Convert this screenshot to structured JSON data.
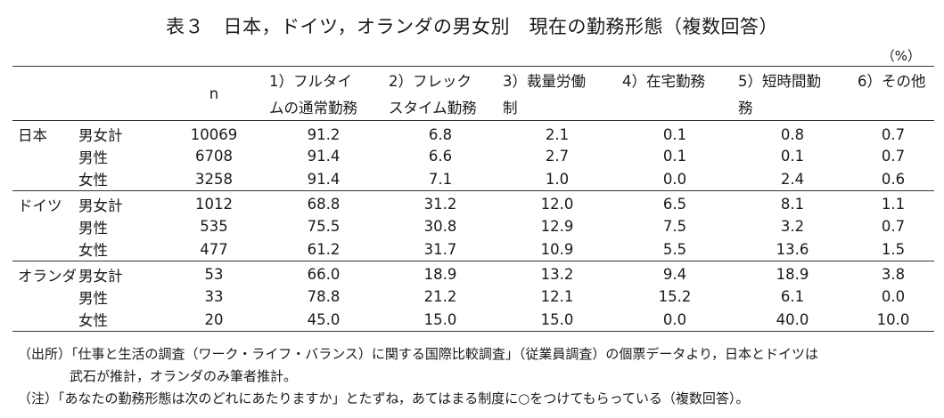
{
  "title": "表３　日本，ドイツ，オランダの男女別　現在の勤務形態（複数回答）",
  "unit": "（%）",
  "headers": {
    "n": "n",
    "col1_line1": "1）フルタイ",
    "col1_line2": "ムの通常勤務",
    "col2_line1": "2）フレック",
    "col2_line2": "スタイム勤務",
    "col3_line1": "3）裁量労働",
    "col3_line2": "制",
    "col4_line1": "4）在宅勤務",
    "col4_line2": "",
    "col5_line1": "5）短時間勤",
    "col5_line2": "務",
    "col6_line1": "6）その他",
    "col6_line2": ""
  },
  "groups": [
    {
      "country": "日本",
      "rows": [
        {
          "sex": "男女計",
          "n": "10069",
          "v1": "91.2",
          "v2": "6.8",
          "v3": "2.1",
          "v4": "0.1",
          "v5": "0.8",
          "v6": "0.7"
        },
        {
          "sex": "男性",
          "n": "6708",
          "v1": "91.4",
          "v2": "6.6",
          "v3": "2.7",
          "v4": "0.1",
          "v5": "0.1",
          "v6": "0.7"
        },
        {
          "sex": "女性",
          "n": "3258",
          "v1": "91.4",
          "v2": "7.1",
          "v3": "1.0",
          "v4": "0.0",
          "v5": "2.4",
          "v6": "0.6"
        }
      ]
    },
    {
      "country": "ドイツ",
      "rows": [
        {
          "sex": "男女計",
          "n": "1012",
          "v1": "68.8",
          "v2": "31.2",
          "v3": "12.0",
          "v4": "6.5",
          "v5": "8.1",
          "v6": "1.1"
        },
        {
          "sex": "男性",
          "n": "535",
          "v1": "75.5",
          "v2": "30.8",
          "v3": "12.9",
          "v4": "7.5",
          "v5": "3.2",
          "v6": "0.7"
        },
        {
          "sex": "女性",
          "n": "477",
          "v1": "61.2",
          "v2": "31.7",
          "v3": "10.9",
          "v4": "5.5",
          "v5": "13.6",
          "v6": "1.5"
        }
      ]
    },
    {
      "country": "オランダ",
      "rows": [
        {
          "sex": "男女計",
          "n": "53",
          "v1": "66.0",
          "v2": "18.9",
          "v3": "13.2",
          "v4": "9.4",
          "v5": "18.9",
          "v6": "3.8"
        },
        {
          "sex": "男性",
          "n": "33",
          "v1": "78.8",
          "v2": "21.2",
          "v3": "12.1",
          "v4": "15.2",
          "v5": "6.1",
          "v6": "0.0"
        },
        {
          "sex": "女性",
          "n": "20",
          "v1": "45.0",
          "v2": "15.0",
          "v3": "15.0",
          "v4": "0.0",
          "v5": "40.0",
          "v6": "10.0"
        }
      ]
    }
  ],
  "notes": {
    "source_line1": "（出所）「仕事と生活の調査（ワーク・ライフ・バランス）に関する国際比較調査」（従業員調査）の個票データより，日本とドイツは",
    "source_line2": "武石が推計，オランダのみ筆者推計。",
    "note": "（注）「あなたの勤務形態は次のどれにあたりますか」とたずね，あてはまる制度に○をつけてもらっている（複数回答）。"
  }
}
